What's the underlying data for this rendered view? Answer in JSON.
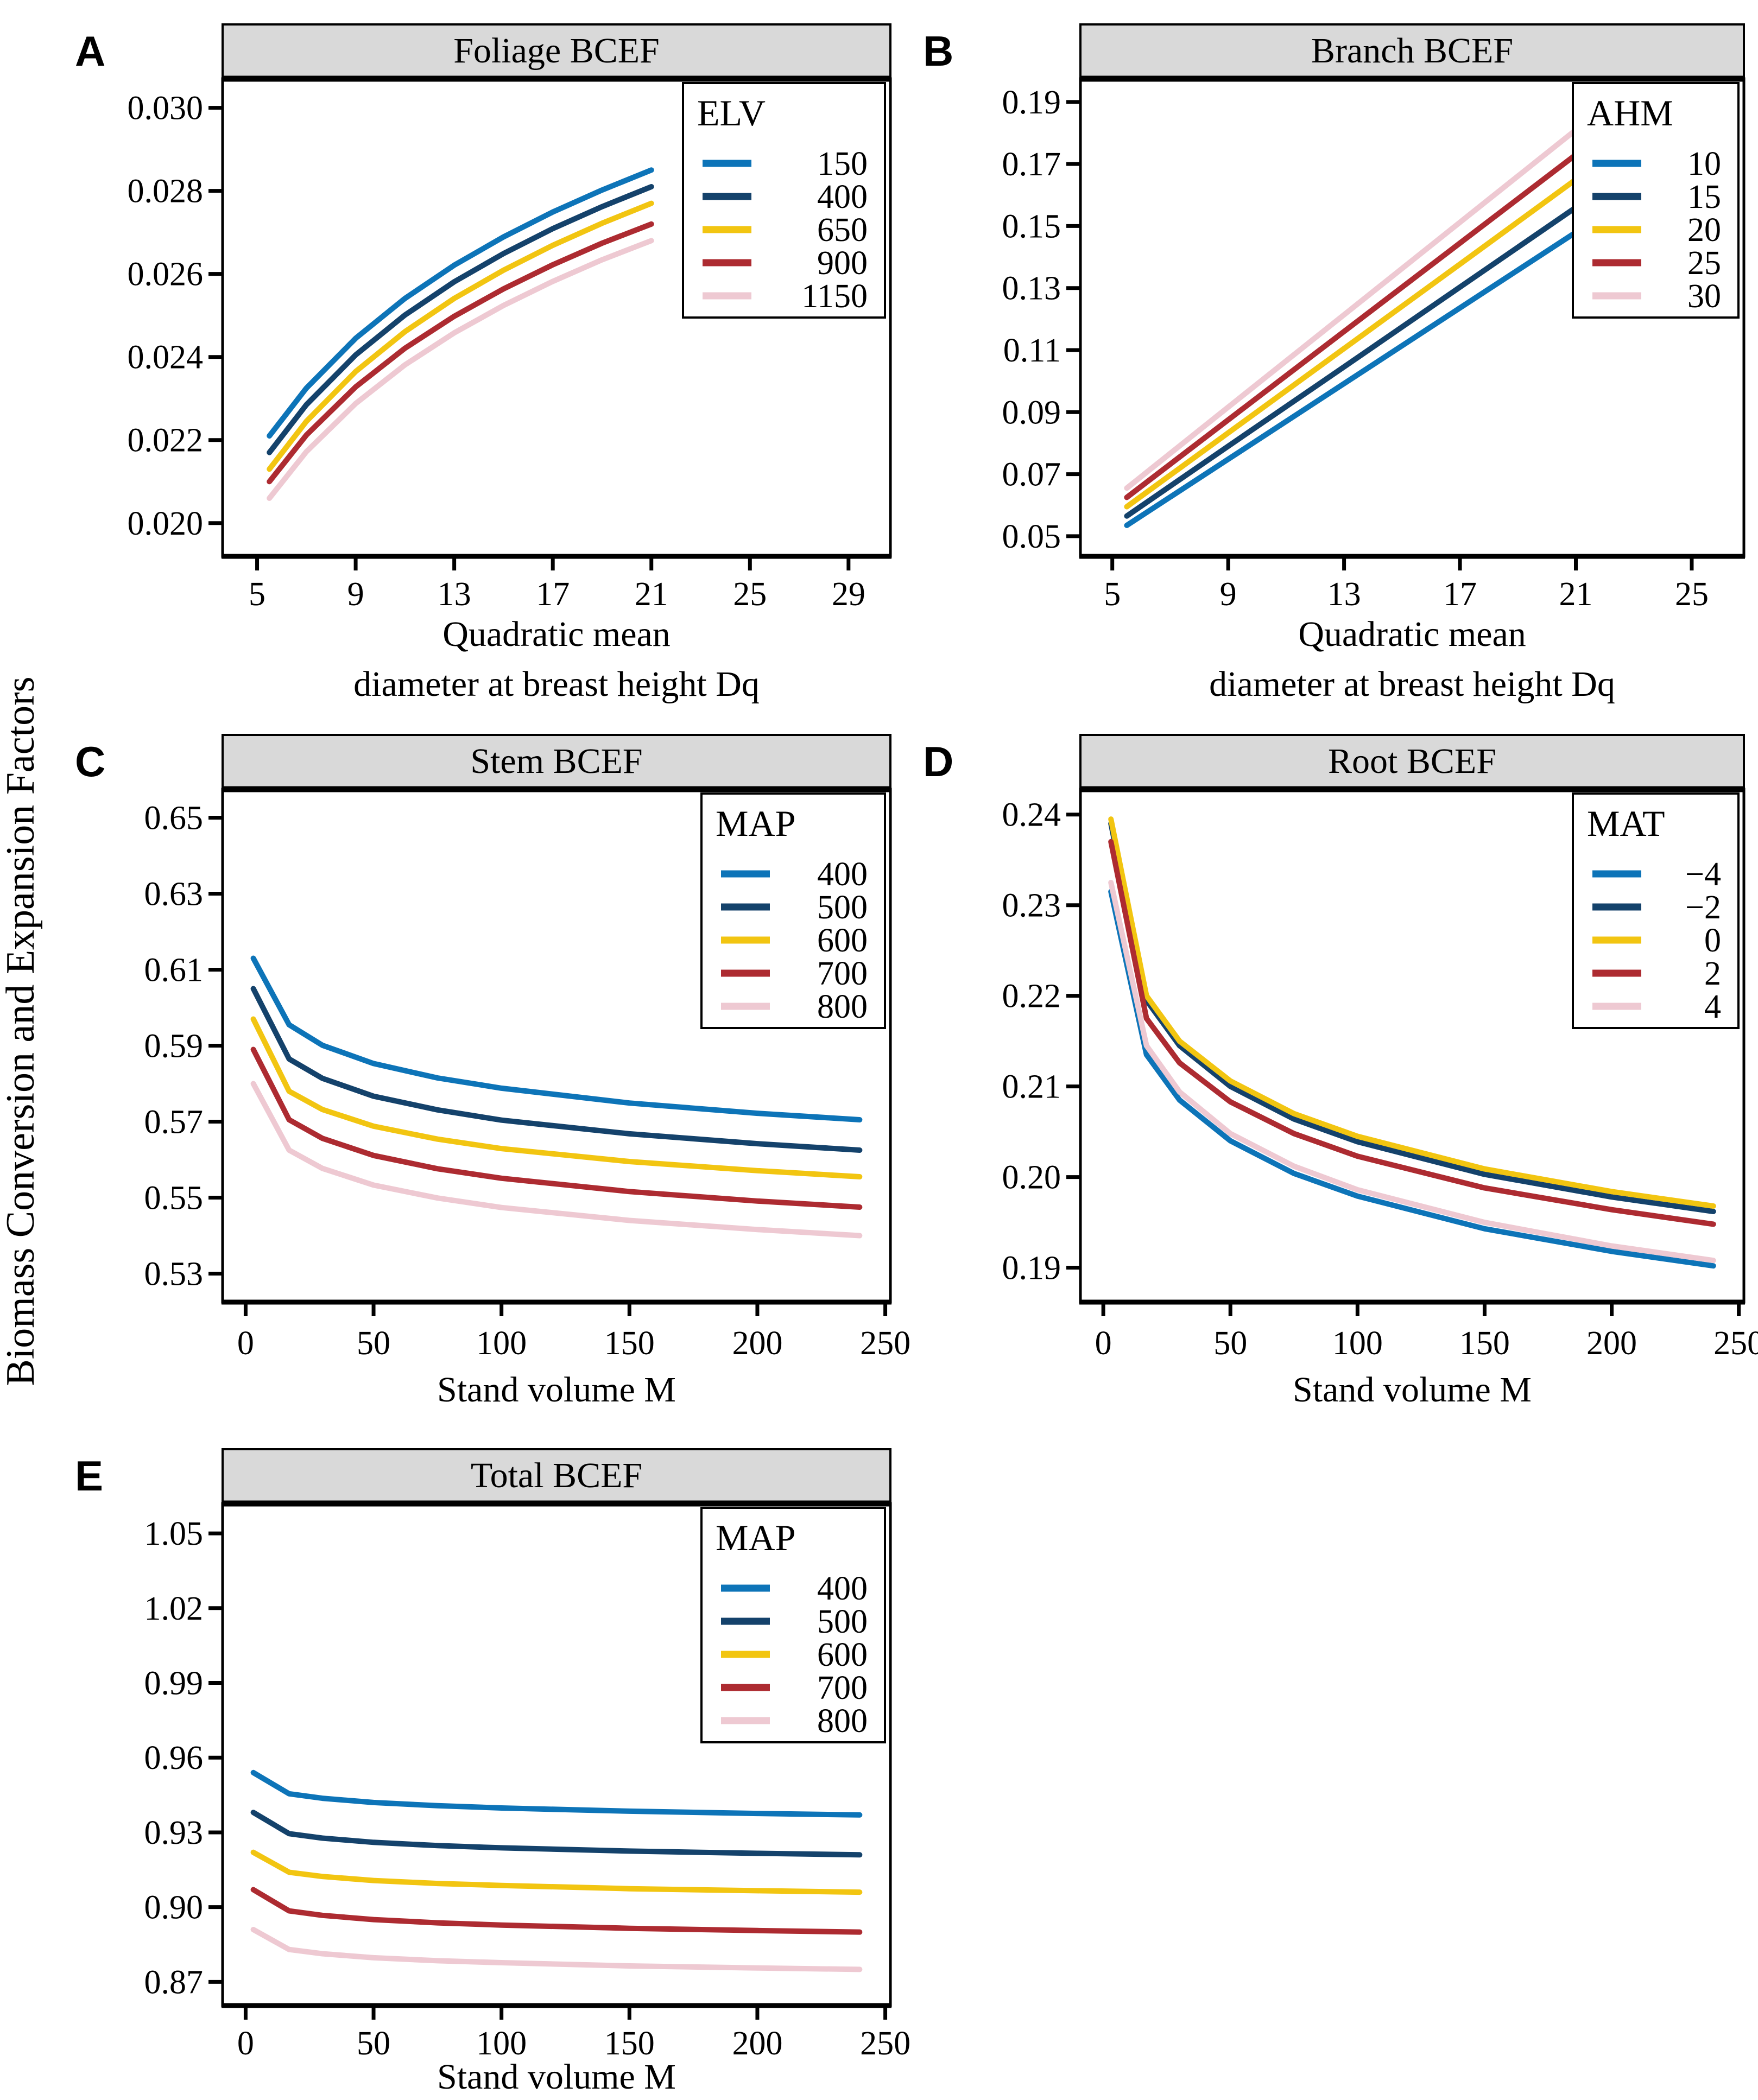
{
  "figure": {
    "shared_y_label": "Biomass Conversion and Expansion Factors",
    "palette": {
      "blue": "#0d74b8",
      "navy": "#14426b",
      "yellow": "#f2c511",
      "red": "#ad2b31",
      "pink": "#eec9d2"
    },
    "strip_fill": "#d9d9d9",
    "axis_color": "#000000",
    "background": "#ffffff"
  },
  "chart_data": [
    {
      "id": "A",
      "type": "line",
      "panel_label": "A",
      "title": "Foliage BCEF",
      "xlabel_lines": [
        "Quadratic mean",
        "diameter at breast height Dq"
      ],
      "legend": {
        "title": "ELV",
        "position": "top-right"
      },
      "grid": false,
      "x_range": [
        3.6,
        30.7
      ],
      "y_range": [
        0.0192,
        0.0307
      ],
      "x_ticks": [
        {
          "v": 5,
          "label": "5"
        },
        {
          "v": 9,
          "label": "9"
        },
        {
          "v": 13,
          "label": "13"
        },
        {
          "v": 17,
          "label": "17"
        },
        {
          "v": 21,
          "label": "21"
        },
        {
          "v": 25,
          "label": "25"
        },
        {
          "v": 29,
          "label": "29"
        }
      ],
      "y_ticks": [
        {
          "v": 0.03,
          "label": "0.030"
        },
        {
          "v": 0.028,
          "label": "0.028"
        },
        {
          "v": 0.026,
          "label": "0.026"
        },
        {
          "v": 0.024,
          "label": "0.024"
        },
        {
          "v": 0.022,
          "label": "0.022"
        },
        {
          "v": 0.02,
          "label": "0.020"
        }
      ],
      "x": [
        5.5,
        7,
        9,
        11,
        13,
        15,
        17,
        19,
        21
      ],
      "series": [
        {
          "name": "150",
          "color": "blue",
          "y": [
            0.0221,
            0.02325,
            0.02445,
            0.02541,
            0.02621,
            0.02689,
            0.02749,
            0.02802,
            0.0285
          ]
        },
        {
          "name": "400",
          "color": "navy",
          "y": [
            0.0217,
            0.02285,
            0.02405,
            0.02501,
            0.02581,
            0.02649,
            0.02709,
            0.02762,
            0.0281
          ]
        },
        {
          "name": "650",
          "color": "yellow",
          "y": [
            0.0213,
            0.02245,
            0.02365,
            0.02461,
            0.02541,
            0.02609,
            0.02669,
            0.02722,
            0.0277
          ]
        },
        {
          "name": "900",
          "color": "red",
          "y": [
            0.021,
            0.02212,
            0.02328,
            0.02421,
            0.02498,
            0.02564,
            0.02622,
            0.02674,
            0.0272
          ]
        },
        {
          "name": "1150",
          "color": "pink",
          "y": [
            0.0206,
            0.02172,
            0.02288,
            0.02381,
            0.02458,
            0.02524,
            0.02582,
            0.02634,
            0.0268
          ]
        }
      ]
    },
    {
      "id": "B",
      "type": "line",
      "panel_label": "B",
      "title": "Branch BCEF",
      "xlabel_lines": [
        "Quadratic mean",
        "diameter at breast height Dq"
      ],
      "legend": {
        "title": "AHM",
        "position": "top-right"
      },
      "grid": false,
      "x_range": [
        3.9,
        26.8
      ],
      "y_range": [
        0.0435,
        0.1975
      ],
      "x_ticks": [
        {
          "v": 5,
          "label": "5"
        },
        {
          "v": 9,
          "label": "9"
        },
        {
          "v": 13,
          "label": "13"
        },
        {
          "v": 17,
          "label": "17"
        },
        {
          "v": 21,
          "label": "21"
        },
        {
          "v": 25,
          "label": "25"
        }
      ],
      "y_ticks": [
        {
          "v": 0.19,
          "label": "0.19"
        },
        {
          "v": 0.17,
          "label": "0.17"
        },
        {
          "v": 0.15,
          "label": "0.15"
        },
        {
          "v": 0.13,
          "label": "0.13"
        },
        {
          "v": 0.11,
          "label": "0.11"
        },
        {
          "v": 0.09,
          "label": "0.09"
        },
        {
          "v": 0.07,
          "label": "0.07"
        },
        {
          "v": 0.05,
          "label": "0.05"
        }
      ],
      "x": [
        5.5,
        9,
        13,
        17,
        21
      ],
      "series": [
        {
          "name": "10",
          "color": "blue",
          "y": [
            0.0535,
            0.0748,
            0.0992,
            0.1236,
            0.148
          ]
        },
        {
          "name": "15",
          "color": "navy",
          "y": [
            0.0565,
            0.079,
            0.1046,
            0.1303,
            0.156
          ]
        },
        {
          "name": "20",
          "color": "yellow",
          "y": [
            0.0595,
            0.0833,
            0.1105,
            0.1377,
            0.165
          ]
        },
        {
          "name": "25",
          "color": "red",
          "y": [
            0.0625,
            0.0875,
            0.116,
            0.1445,
            0.173
          ]
        },
        {
          "name": "30",
          "color": "pink",
          "y": [
            0.0655,
            0.0916,
            0.1214,
            0.1512,
            0.181
          ]
        }
      ]
    },
    {
      "id": "C",
      "type": "line",
      "panel_label": "C",
      "title": "Stem BCEF",
      "xlabel_lines": [
        "Stand volume M"
      ],
      "legend": {
        "title": "MAP",
        "position": "top-right"
      },
      "grid": false,
      "x_range": [
        -9,
        252
      ],
      "y_range": [
        0.5225,
        0.6575
      ],
      "x_ticks": [
        {
          "v": 0,
          "label": "0"
        },
        {
          "v": 50,
          "label": "50"
        },
        {
          "v": 100,
          "label": "100"
        },
        {
          "v": 150,
          "label": "150"
        },
        {
          "v": 200,
          "label": "200"
        },
        {
          "v": 250,
          "label": "250"
        }
      ],
      "y_ticks": [
        {
          "v": 0.65,
          "label": "0.65"
        },
        {
          "v": 0.63,
          "label": "0.63"
        },
        {
          "v": 0.61,
          "label": "0.61"
        },
        {
          "v": 0.59,
          "label": "0.59"
        },
        {
          "v": 0.57,
          "label": "0.57"
        },
        {
          "v": 0.55,
          "label": "0.55"
        },
        {
          "v": 0.53,
          "label": "0.53"
        }
      ],
      "x": [
        3,
        17,
        30,
        50,
        75,
        100,
        150,
        200,
        240
      ],
      "series": [
        {
          "name": "400",
          "color": "blue",
          "y": [
            0.613,
            0.5955,
            0.5901,
            0.5853,
            0.5815,
            0.5788,
            0.5749,
            0.5722,
            0.5705
          ]
        },
        {
          "name": "500",
          "color": "navy",
          "y": [
            0.605,
            0.5865,
            0.5814,
            0.5767,
            0.5731,
            0.5704,
            0.5668,
            0.5642,
            0.5625
          ]
        },
        {
          "name": "600",
          "color": "yellow",
          "y": [
            0.597,
            0.578,
            0.5732,
            0.5688,
            0.5654,
            0.5629,
            0.5595,
            0.5571,
            0.5555
          ]
        },
        {
          "name": "700",
          "color": "red",
          "y": [
            0.589,
            0.5705,
            0.5656,
            0.5611,
            0.5576,
            0.5551,
            0.5516,
            0.5491,
            0.5475
          ]
        },
        {
          "name": "800",
          "color": "pink",
          "y": [
            0.58,
            0.5625,
            0.5577,
            0.5533,
            0.5499,
            0.5474,
            0.544,
            0.5416,
            0.54
          ]
        }
      ]
    },
    {
      "id": "D",
      "type": "line",
      "panel_label": "D",
      "title": "Root BCEF",
      "xlabel_lines": [
        "Stand volume M"
      ],
      "legend": {
        "title": "MAT",
        "position": "top-right"
      },
      "grid": false,
      "x_range": [
        -9,
        252
      ],
      "y_range": [
        0.1862,
        0.2428
      ],
      "x_ticks": [
        {
          "v": 0,
          "label": "0"
        },
        {
          "v": 50,
          "label": "50"
        },
        {
          "v": 100,
          "label": "100"
        },
        {
          "v": 150,
          "label": "150"
        },
        {
          "v": 200,
          "label": "200"
        },
        {
          "v": 250,
          "label": "250"
        }
      ],
      "y_ticks": [
        {
          "v": 0.24,
          "label": "0.24"
        },
        {
          "v": 0.23,
          "label": "0.23"
        },
        {
          "v": 0.22,
          "label": "0.22"
        },
        {
          "v": 0.21,
          "label": "0.21"
        },
        {
          "v": 0.2,
          "label": "0.20"
        },
        {
          "v": 0.19,
          "label": "0.19"
        }
      ],
      "x": [
        3,
        17,
        30,
        50,
        75,
        100,
        150,
        200,
        240
      ],
      "series": [
        {
          "name": "−4",
          "color": "blue",
          "y": [
            0.2315,
            0.2135,
            0.2085,
            0.204,
            0.2004,
            0.1979,
            0.1943,
            0.1918,
            0.1902
          ]
        },
        {
          "name": "−2",
          "color": "navy",
          "y": [
            0.239,
            0.2195,
            0.2145,
            0.21,
            0.2064,
            0.2039,
            0.2003,
            0.1978,
            0.1962
          ]
        },
        {
          "name": "0",
          "color": "yellow",
          "y": [
            0.2395,
            0.22,
            0.215,
            0.2106,
            0.207,
            0.2045,
            0.2009,
            0.1984,
            0.1968
          ]
        },
        {
          "name": "2",
          "color": "red",
          "y": [
            0.237,
            0.2175,
            0.2126,
            0.2083,
            0.2048,
            0.2023,
            0.1988,
            0.1964,
            0.1948
          ]
        },
        {
          "name": "4",
          "color": "pink",
          "y": [
            0.2325,
            0.2145,
            0.2094,
            0.2048,
            0.2012,
            0.1986,
            0.195,
            0.1924,
            0.1908
          ]
        }
      ]
    },
    {
      "id": "E",
      "type": "line",
      "panel_label": "E",
      "title": "Total BCEF",
      "xlabel_lines": [
        "Stand volume M"
      ],
      "legend": {
        "title": "MAP",
        "position": "top-right"
      },
      "grid": false,
      "x_range": [
        -9,
        252
      ],
      "y_range": [
        0.8605,
        1.062
      ],
      "x_ticks": [
        {
          "v": 0,
          "label": "0"
        },
        {
          "v": 50,
          "label": "50"
        },
        {
          "v": 100,
          "label": "100"
        },
        {
          "v": 150,
          "label": "150"
        },
        {
          "v": 200,
          "label": "200"
        },
        {
          "v": 250,
          "label": "250"
        }
      ],
      "y_ticks": [
        {
          "v": 1.05,
          "label": "1.05"
        },
        {
          "v": 1.02,
          "label": "1.02"
        },
        {
          "v": 0.99,
          "label": "0.99"
        },
        {
          "v": 0.96,
          "label": "0.96"
        },
        {
          "v": 0.93,
          "label": "0.93"
        },
        {
          "v": 0.9,
          "label": "0.90"
        },
        {
          "v": 0.87,
          "label": "0.87"
        }
      ],
      "x": [
        3,
        17,
        30,
        50,
        75,
        100,
        150,
        200,
        240
      ],
      "series": [
        {
          "name": "400",
          "color": "blue",
          "y": [
            0.954,
            0.9455,
            0.9437,
            0.942,
            0.9407,
            0.9398,
            0.9385,
            0.9376,
            0.937
          ]
        },
        {
          "name": "500",
          "color": "navy",
          "y": [
            0.938,
            0.9295,
            0.9277,
            0.926,
            0.9247,
            0.9238,
            0.9225,
            0.9216,
            0.921
          ]
        },
        {
          "name": "600",
          "color": "yellow",
          "y": [
            0.922,
            0.914,
            0.9123,
            0.9107,
            0.9095,
            0.9087,
            0.9074,
            0.9066,
            0.906
          ]
        },
        {
          "name": "700",
          "color": "red",
          "y": [
            0.907,
            0.8985,
            0.8967,
            0.895,
            0.8937,
            0.8928,
            0.8915,
            0.8906,
            0.89
          ]
        },
        {
          "name": "800",
          "color": "pink",
          "y": [
            0.891,
            0.883,
            0.8813,
            0.8797,
            0.8785,
            0.8777,
            0.8764,
            0.8756,
            0.875
          ]
        }
      ]
    }
  ]
}
